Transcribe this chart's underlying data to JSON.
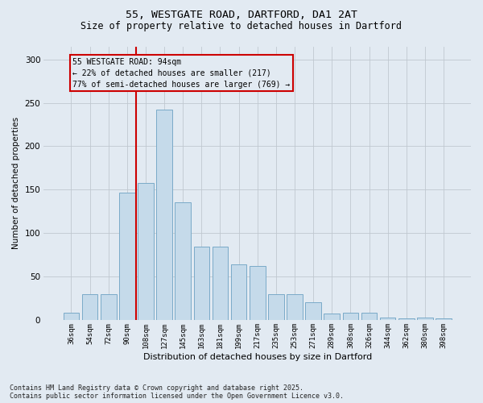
{
  "title_line1": "55, WESTGATE ROAD, DARTFORD, DA1 2AT",
  "title_line2": "Size of property relative to detached houses in Dartford",
  "xlabel": "Distribution of detached houses by size in Dartford",
  "ylabel": "Number of detached properties",
  "categories": [
    "36sqm",
    "54sqm",
    "72sqm",
    "90sqm",
    "108sqm",
    "127sqm",
    "145sqm",
    "163sqm",
    "181sqm",
    "199sqm",
    "217sqm",
    "235sqm",
    "253sqm",
    "271sqm",
    "289sqm",
    "308sqm",
    "326sqm",
    "344sqm",
    "362sqm",
    "380sqm",
    "398sqm"
  ],
  "values": [
    8,
    30,
    30,
    147,
    158,
    242,
    135,
    84,
    84,
    64,
    62,
    30,
    30,
    20,
    7,
    8,
    8,
    3,
    2,
    3,
    2
  ],
  "bar_color": "#c5daea",
  "bar_edge_color": "#7aaac8",
  "grid_color": "#c0c8d0",
  "bg_color": "#e2eaf2",
  "vline_color": "#cc0000",
  "annotation_text": "55 WESTGATE ROAD: 94sqm\n← 22% of detached houses are smaller (217)\n77% of semi-detached houses are larger (769) →",
  "annotation_box_color": "#cc0000",
  "footer_text": "Contains HM Land Registry data © Crown copyright and database right 2025.\nContains public sector information licensed under the Open Government Licence v3.0.",
  "ylim": [
    0,
    315
  ],
  "yticks": [
    0,
    50,
    100,
    150,
    200,
    250,
    300
  ]
}
